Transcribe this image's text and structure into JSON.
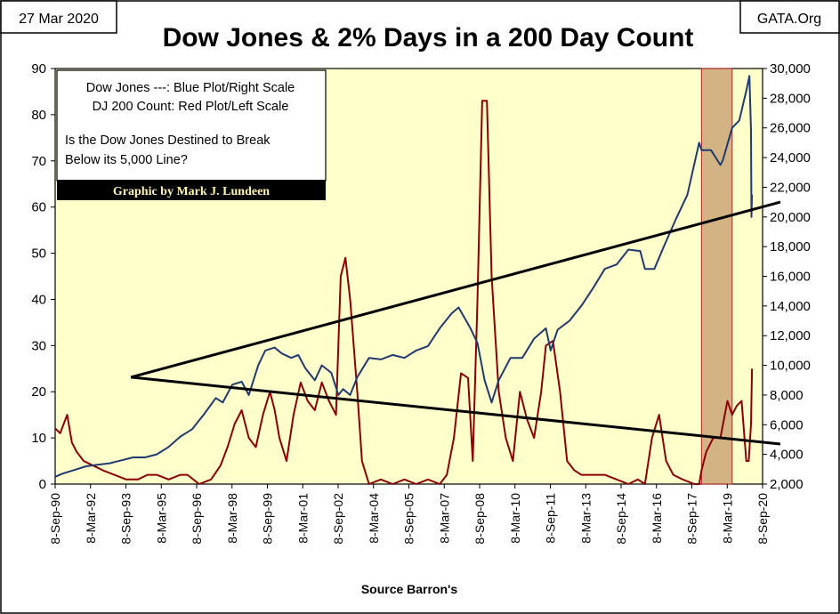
{
  "header": {
    "date": "27 Mar 2020",
    "title": "Dow Jones & 2% Days in a 200 Day Count",
    "source_tag": "GATA.Org"
  },
  "legend": {
    "line1": "Dow Jones ---: Blue Plot/Right Scale",
    "line2": "DJ 200 Count: Red Plot/Left Scale",
    "question_line1": "Is the Dow Jones Destined to Break",
    "question_line2": "Below its 5,000 Line?",
    "credit": "Graphic by Mark J. Lundeen"
  },
  "footer": {
    "source": "Source Barron's"
  },
  "colors": {
    "plot_bg": "#ffffcc",
    "dow_series": "#1f3b6e",
    "count_series": "#8b0000",
    "trend_lines": "#000000",
    "shade": "#c49a6c",
    "credit_bg": "#000000",
    "credit_text": "#fff3b0"
  },
  "chart_data": {
    "type": "line",
    "title": "Dow Jones & 2% Days in a 200 Day Count",
    "x_tick_labels": [
      "8-Sep-90",
      "8-Mar-92",
      "8-Sep-93",
      "8-Mar-95",
      "8-Sep-96",
      "8-Mar-98",
      "8-Sep-99",
      "8-Mar-01",
      "8-Sep-02",
      "8-Mar-04",
      "8-Sep-05",
      "8-Mar-07",
      "8-Sep-08",
      "8-Mar-10",
      "8-Sep-11",
      "8-Mar-13",
      "8-Sep-14",
      "8-Mar-16",
      "8-Sep-17",
      "8-Mar-19",
      "8-Sep-20"
    ],
    "x_range": [
      1990.69,
      2020.69
    ],
    "left_axis": {
      "label": "DJ 200 Count",
      "range": [
        0,
        90
      ],
      "ticks": [
        0,
        10,
        20,
        30,
        40,
        50,
        60,
        70,
        80,
        90
      ]
    },
    "right_axis": {
      "label": "Dow Jones",
      "range": [
        2000,
        30000
      ],
      "ticks": [
        "2,000",
        "4,000",
        "6,000",
        "8,000",
        "10,000",
        "12,000",
        "14,000",
        "16,000",
        "18,000",
        "20,000",
        "22,000",
        "24,000",
        "26,000",
        "28,000",
        "30,000"
      ]
    },
    "grid": false,
    "shaded_region": [
      2018.1,
      2019.4
    ],
    "series": [
      {
        "name": "Dow Jones",
        "axis": "right",
        "x": [
          1990.7,
          1991.0,
          1991.5,
          1992.0,
          1992.5,
          1993.0,
          1993.5,
          1994.0,
          1994.5,
          1995.0,
          1995.5,
          1996.0,
          1996.5,
          1997.0,
          1997.5,
          1997.8,
          1998.2,
          1998.6,
          1998.9,
          1999.3,
          1999.6,
          2000.0,
          2000.3,
          2000.7,
          2001.0,
          2001.3,
          2001.7,
          2002.0,
          2002.4,
          2002.7,
          2002.9,
          2003.2,
          2003.5,
          2004.0,
          2004.5,
          2005.0,
          2005.5,
          2006.0,
          2006.5,
          2007.0,
          2007.5,
          2007.8,
          2008.3,
          2008.6,
          2008.9,
          2009.2,
          2009.5,
          2010.0,
          2010.5,
          2011.0,
          2011.5,
          2011.7,
          2012.0,
          2012.5,
          2013.0,
          2013.5,
          2014.0,
          2014.5,
          2015.0,
          2015.5,
          2015.7,
          2016.1,
          2016.5,
          2017.0,
          2017.5,
          2018.0,
          2018.1,
          2018.5,
          2018.9,
          2019.0,
          2019.4,
          2019.7,
          2020.0,
          2020.13,
          2020.2,
          2020.22,
          2020.24
        ],
        "y": [
          2500,
          2700,
          2950,
          3200,
          3300,
          3400,
          3600,
          3800,
          3800,
          4000,
          4500,
          5200,
          5700,
          6700,
          7800,
          7500,
          8700,
          8900,
          8000,
          10000,
          11000,
          11200,
          10800,
          10500,
          10700,
          9800,
          9000,
          10000,
          9500,
          8000,
          8400,
          8000,
          9200,
          10500,
          10400,
          10700,
          10500,
          11000,
          11300,
          12500,
          13500,
          13900,
          12500,
          11500,
          9000,
          7500,
          9000,
          10500,
          10500,
          11800,
          12500,
          11000,
          12400,
          13000,
          14000,
          15200,
          16500,
          16800,
          17800,
          17700,
          16500,
          16500,
          18000,
          19800,
          21500,
          25000,
          24500,
          24500,
          23500,
          23800,
          26000,
          26500,
          28500,
          29500,
          25800,
          20000,
          21500
        ]
      },
      {
        "name": "DJ 200 Count",
        "axis": "left",
        "x": [
          1990.7,
          1990.9,
          1991.2,
          1991.4,
          1991.6,
          1991.9,
          1992.3,
          1992.7,
          1993.2,
          1993.7,
          1994.2,
          1994.6,
          1995.0,
          1995.5,
          1996.0,
          1996.3,
          1996.8,
          1997.3,
          1997.7,
          1998.0,
          1998.3,
          1998.6,
          1998.9,
          1999.2,
          1999.5,
          1999.8,
          2000.0,
          2000.2,
          2000.5,
          2000.8,
          2001.1,
          2001.4,
          2001.7,
          2002.0,
          2002.3,
          2002.6,
          2002.8,
          2003.0,
          2003.2,
          2003.5,
          2003.7,
          2004.0,
          2004.5,
          2005.0,
          2005.5,
          2006.0,
          2006.5,
          2007.0,
          2007.3,
          2007.6,
          2007.9,
          2008.2,
          2008.4,
          2008.6,
          2008.8,
          2009.0,
          2009.2,
          2009.5,
          2009.8,
          2010.1,
          2010.4,
          2010.7,
          2011.0,
          2011.3,
          2011.5,
          2011.8,
          2012.1,
          2012.4,
          2012.7,
          2013.0,
          2013.5,
          2014.0,
          2014.5,
          2015.0,
          2015.4,
          2015.7,
          2016.0,
          2016.3,
          2016.6,
          2016.9,
          2017.3,
          2017.8,
          2018.0,
          2018.1,
          2018.3,
          2018.6,
          2018.9,
          2019.2,
          2019.4,
          2019.6,
          2019.8,
          2020.0,
          2020.1,
          2020.2,
          2020.24
        ],
        "y": [
          12,
          11,
          15,
          9,
          7,
          5,
          4,
          3,
          2,
          1,
          1,
          2,
          2,
          1,
          2,
          2,
          0,
          1,
          4,
          8,
          13,
          16,
          10,
          8,
          15,
          20,
          16,
          10,
          5,
          15,
          22,
          18,
          16,
          22,
          18,
          15,
          45,
          49,
          40,
          20,
          5,
          0,
          1,
          0,
          1,
          0,
          1,
          0,
          2,
          10,
          24,
          23,
          5,
          40,
          83,
          83,
          45,
          20,
          10,
          5,
          20,
          14,
          10,
          20,
          30,
          31,
          20,
          5,
          3,
          2,
          2,
          2,
          1,
          0,
          1,
          0,
          10,
          15,
          5,
          2,
          1,
          0,
          0,
          3,
          7,
          10,
          10,
          18,
          15,
          17,
          18,
          5,
          5,
          13,
          25
        ]
      }
    ],
    "trend_lines": [
      {
        "from": [
          1993.9,
          9200
        ],
        "to": [
          2020.69,
          21000
        ]
      },
      {
        "from": [
          1993.9,
          9200
        ],
        "to": [
          2020.69,
          4700
        ]
      }
    ]
  }
}
